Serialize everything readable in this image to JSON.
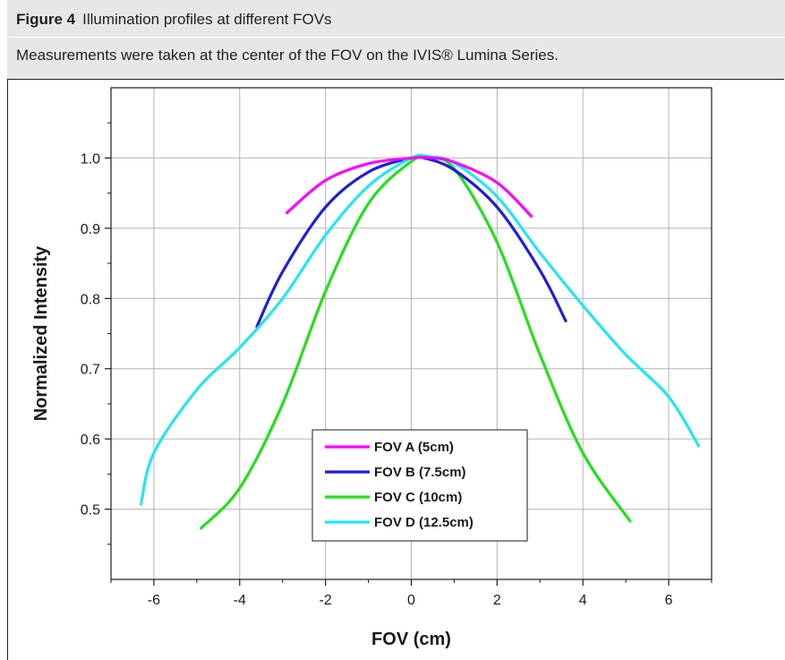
{
  "caption": {
    "figure_label": "Figure 4",
    "title": "Illumination profiles at different FOVs",
    "subtitle": "Measurements were taken at the center of the FOV on the IVIS® Lumina Series."
  },
  "chart_data": {
    "type": "line",
    "xlabel": "FOV (cm)",
    "ylabel": "Normalized Intensity",
    "xlim": [
      -7,
      7
    ],
    "ylim": [
      0.4,
      1.1
    ],
    "x_ticks": [
      -6,
      -4,
      -2,
      0,
      2,
      4,
      6
    ],
    "x_tick_labels": [
      "-6",
      "-4",
      "-2",
      "0",
      "2",
      "4",
      "6"
    ],
    "y_ticks": [
      0.5,
      0.6,
      0.7,
      0.8,
      0.9,
      1.0
    ],
    "y_tick_labels": [
      "0.5",
      "0.6",
      "0.7",
      "0.8",
      "0.9",
      "1.0"
    ],
    "grid": true,
    "legend_position": "lower-center",
    "series": [
      {
        "name": "FOV A (5cm)",
        "color": "#ff00ff",
        "x": [
          -2.9,
          -2.0,
          -1.0,
          0.0,
          0.5,
          1.0,
          2.0,
          2.8
        ],
        "y": [
          0.922,
          0.968,
          0.992,
          1.0,
          1.0,
          0.994,
          0.965,
          0.917
        ]
      },
      {
        "name": "FOV B (7.5cm)",
        "color": "#1f1fd6",
        "x": [
          -3.6,
          -3.0,
          -2.0,
          -1.0,
          0.0,
          0.3,
          1.0,
          2.0,
          3.0,
          3.6
        ],
        "y": [
          0.76,
          0.838,
          0.93,
          0.98,
          1.0,
          1.0,
          0.983,
          0.93,
          0.84,
          0.768
        ]
      },
      {
        "name": "FOV C (10cm)",
        "color": "#22e01c",
        "x": [
          -4.9,
          -4.0,
          -3.0,
          -2.0,
          -1.0,
          0.0,
          0.4,
          1.0,
          2.0,
          3.0,
          4.0,
          5.1
        ],
        "y": [
          0.473,
          0.53,
          0.65,
          0.81,
          0.935,
          0.995,
          1.0,
          0.985,
          0.88,
          0.72,
          0.58,
          0.483
        ]
      },
      {
        "name": "FOV D (12.5cm)",
        "color": "#22e6f2",
        "x": [
          -6.3,
          -6.0,
          -5.0,
          -4.0,
          -3.0,
          -2.0,
          -1.0,
          0.0,
          0.4,
          1.0,
          2.0,
          3.0,
          4.0,
          5.0,
          6.0,
          6.7
        ],
        "y": [
          0.507,
          0.58,
          0.67,
          0.73,
          0.8,
          0.89,
          0.96,
          1.0,
          1.002,
          0.993,
          0.945,
          0.865,
          0.79,
          0.72,
          0.66,
          0.59
        ]
      }
    ]
  }
}
